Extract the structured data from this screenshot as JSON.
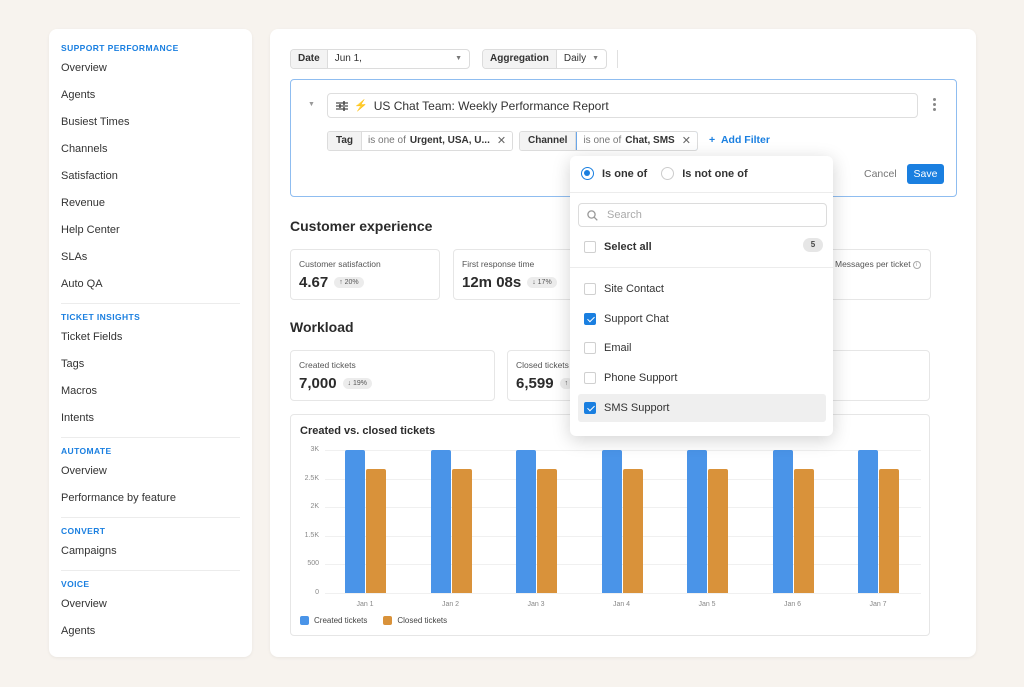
{
  "sidebar": {
    "sections": [
      {
        "title": "SUPPORT PERFORMANCE",
        "items": [
          "Overview",
          "Agents",
          "Busiest Times",
          "Channels",
          "Satisfaction",
          "Revenue",
          "Help Center",
          "SLAs",
          "Auto QA"
        ]
      },
      {
        "title": "TICKET INSIGHTS",
        "items": [
          "Ticket Fields",
          "Tags",
          "Macros",
          "Intents"
        ]
      },
      {
        "title": "AUTOMATE",
        "items": [
          "Overview",
          "Performance by feature"
        ]
      },
      {
        "title": "CONVERT",
        "items": [
          "Campaigns"
        ]
      },
      {
        "title": "VOICE",
        "items": [
          "Overview",
          "Agents"
        ]
      }
    ]
  },
  "topbar": {
    "date_label": "Date",
    "date_value": "Jun 1,",
    "aggregation_label": "Aggregation",
    "aggregation_value": "Daily"
  },
  "filters": {
    "report_name": "US Chat Team: Weekly Performance Report",
    "tag": {
      "label": "Tag",
      "operator": "is one of",
      "value": "Urgent, USA, U..."
    },
    "channel": {
      "label": "Channel",
      "operator": "is one of",
      "value": "Chat, SMS"
    },
    "add_filter": "Add Filter",
    "cancel": "Cancel",
    "save": "Save"
  },
  "customer_experience": {
    "title": "Customer experience",
    "kpis": [
      {
        "label": "Customer satisfaction",
        "value": "4.67",
        "delta": "↑ 20%"
      },
      {
        "label": "First response time",
        "value": "12m 08s",
        "delta": "↓ 17%"
      },
      {
        "label": "Messages per ticket",
        "value": "",
        "delta": ""
      }
    ]
  },
  "workload": {
    "title": "Workload",
    "kpis": [
      {
        "label": "Created tickets",
        "value": "7,000",
        "delta": "↓ 19%"
      },
      {
        "label": "Closed tickets",
        "value": "6,599",
        "delta": "↑"
      },
      {
        "label": "",
        "value": "",
        "delta": ""
      }
    ]
  },
  "dropdown": {
    "radio_options": [
      "Is one of",
      "Is not one of"
    ],
    "selected_radio": "Is one of",
    "search_placeholder": "Search",
    "select_all": "Select all",
    "count": "5",
    "options": [
      {
        "label": "Site Contact",
        "checked": false
      },
      {
        "label": "Support Chat",
        "checked": true
      },
      {
        "label": "Email",
        "checked": false
      },
      {
        "label": "Phone Support",
        "checked": false
      },
      {
        "label": "SMS Support",
        "checked": true
      }
    ]
  },
  "colors": {
    "accent": "#1a7fe0",
    "created": "#4a94e8",
    "closed": "#d9923a"
  },
  "chart_data": {
    "type": "bar",
    "title": "Created vs. closed tickets",
    "categories": [
      "Jan 1",
      "Jan 2",
      "Jan 3",
      "Jan 4",
      "Jan 5",
      "Jan 6",
      "Jan 7"
    ],
    "series": [
      {
        "name": "Created tickets",
        "values": [
          3000,
          3000,
          3000,
          3000,
          3000,
          3000,
          3000
        ]
      },
      {
        "name": "Closed tickets",
        "values": [
          2600,
          2600,
          2600,
          2600,
          2600,
          2600,
          2600
        ]
      }
    ],
    "yticks": [
      "3K",
      "2.5K",
      "2K",
      "1.5K",
      "500",
      "0"
    ],
    "ylim": [
      0,
      3000
    ],
    "xlabel": "",
    "ylabel": "",
    "legend_position": "bottom-left",
    "grid": true
  }
}
